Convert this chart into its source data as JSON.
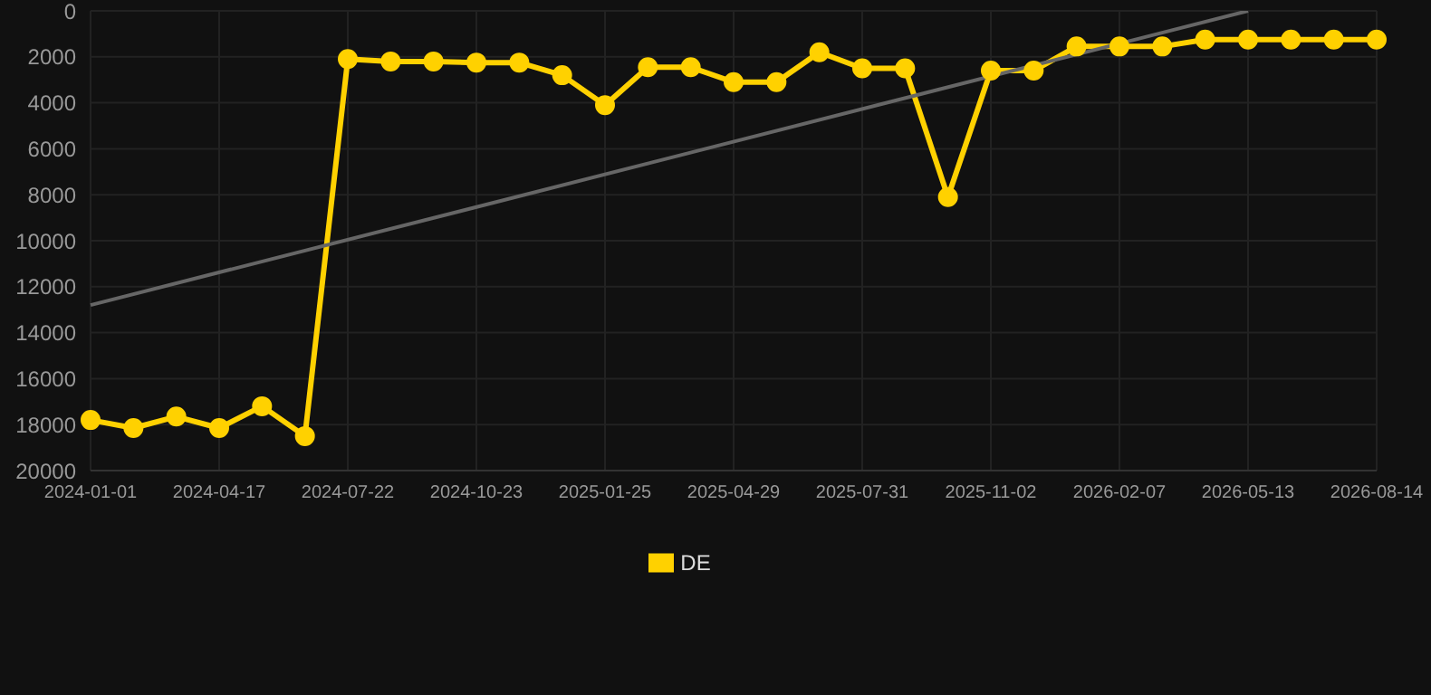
{
  "chart_data": {
    "type": "line",
    "categories": [
      "2024-01-01",
      null,
      null,
      "2024-04-17",
      null,
      null,
      "2024-07-22",
      null,
      null,
      "2024-10-23",
      null,
      null,
      "2025-01-25",
      null,
      null,
      "2025-04-29",
      null,
      null,
      "2025-07-31",
      null,
      null,
      "2025-11-02",
      null,
      null,
      "2026-02-07",
      null,
      null,
      "2026-05-13",
      null,
      null,
      "2026-08-14"
    ],
    "series": [
      {
        "name": "DE",
        "color": "#ffd100",
        "marker": "circle",
        "values": [
          17800,
          18150,
          17650,
          18150,
          17200,
          18500,
          2100,
          2200,
          2200,
          2250,
          2250,
          2800,
          4100,
          2450,
          2450,
          3100,
          3100,
          1800,
          2500,
          2500,
          8100,
          2600,
          2600,
          1550,
          1550,
          1550,
          1250,
          1250,
          1250,
          1250,
          1250
        ]
      },
      {
        "color": "#666666",
        "marker": "none",
        "values": [
          12800,
          null,
          null,
          null,
          null,
          null,
          null,
          null,
          null,
          null,
          null,
          null,
          null,
          null,
          null,
          null,
          null,
          null,
          null,
          null,
          null,
          null,
          null,
          null,
          null,
          null,
          null,
          0,
          null,
          null,
          null
        ]
      }
    ],
    "ylim": [
      20000,
      0
    ],
    "yticks": [
      0,
      2000,
      4000,
      6000,
      8000,
      10000,
      12000,
      14000,
      16000,
      18000,
      20000
    ],
    "grid": true,
    "legend": "bottom"
  }
}
